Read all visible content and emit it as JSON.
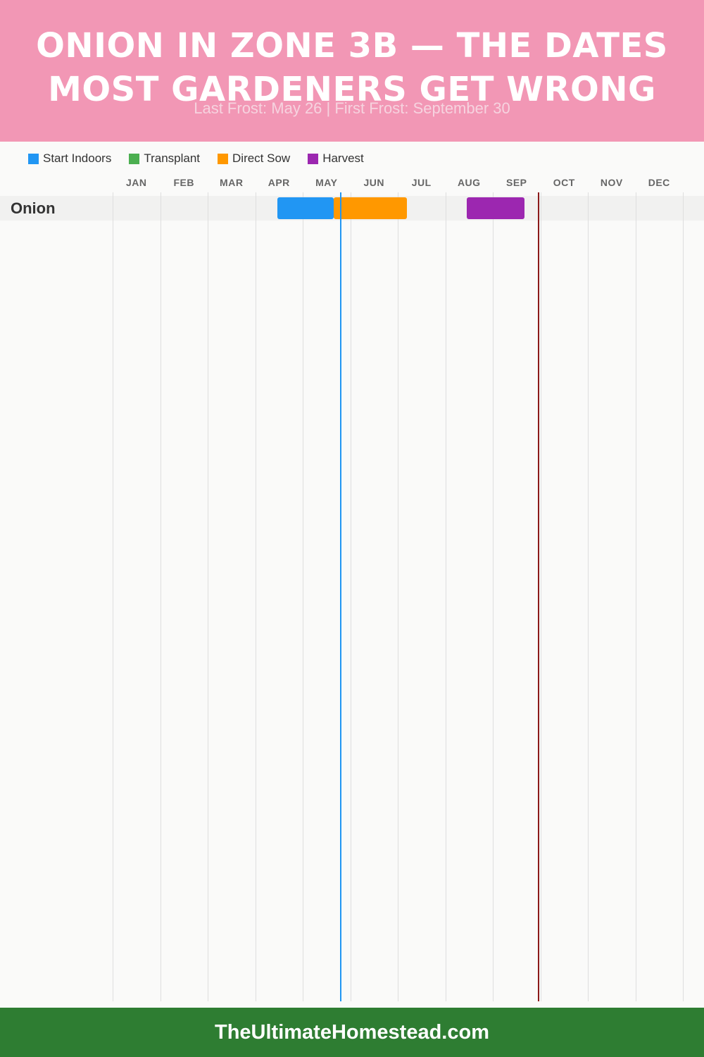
{
  "header": {
    "title": "Onion in Zone 3B — The Dates Most Gardeners Get Wrong",
    "subtitle": "Last Frost: May 26 | First Frost: September 30"
  },
  "legend": [
    {
      "label": "Start Indoors",
      "color": "#2196f3"
    },
    {
      "label": "Transplant",
      "color": "#4caf50"
    },
    {
      "label": "Direct Sow",
      "color": "#ff9800"
    },
    {
      "label": "Harvest",
      "color": "#9c27b0"
    }
  ],
  "footer": {
    "text": "TheUltimateHomestead.com"
  },
  "chart_data": {
    "type": "gantt",
    "months": [
      "JAN",
      "FEB",
      "MAR",
      "APR",
      "MAY",
      "JUN",
      "JUL",
      "AUG",
      "SEP",
      "OCT",
      "NOV",
      "DEC"
    ],
    "rows": [
      {
        "crop": "Onion",
        "bars": [
          {
            "phase": "Start Indoors",
            "start": "Apr 15",
            "end": "May 21",
            "color": "#2196f3"
          },
          {
            "phase": "Direct Sow",
            "start": "May 21",
            "end": "Jul 7",
            "color": "#ff9800"
          },
          {
            "phase": "Harvest",
            "start": "Aug 15",
            "end": "Sep 21",
            "color": "#9c27b0"
          }
        ]
      }
    ],
    "frost_lines": [
      {
        "label": "Last Frost",
        "date": "May 26",
        "color": "#2196f3"
      },
      {
        "label": "First Frost",
        "date": "Sep 30",
        "color": "#8b1a1a"
      }
    ]
  }
}
